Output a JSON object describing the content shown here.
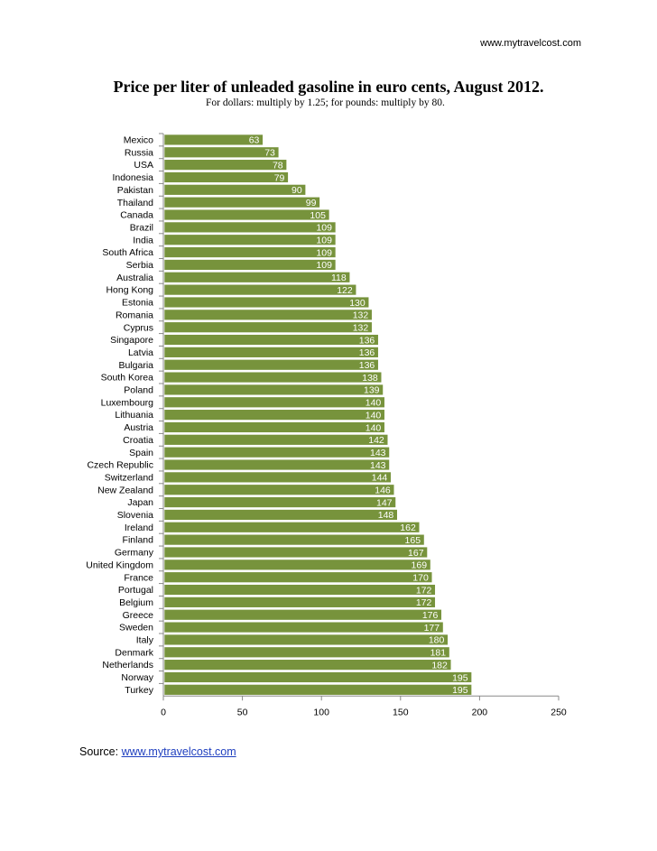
{
  "header": {
    "site_url": "www.mytravelcost.com"
  },
  "chart_data": {
    "type": "bar",
    "orientation": "horizontal",
    "title": "Price per liter of unleaded gasoline in euro cents, August 2012.",
    "subtitle": "For dollars: multiply by 1.25; for pounds: multiply by 80.",
    "categories": [
      "Mexico",
      "Russia",
      "USA",
      "Indonesia",
      "Pakistan",
      "Thailand",
      "Canada",
      "Brazil",
      "India",
      "South Africa",
      "Serbia",
      "Australia",
      "Hong Kong",
      "Estonia",
      "Romania",
      "Cyprus",
      "Singapore",
      "Latvia",
      "Bulgaria",
      "South Korea",
      "Poland",
      "Luxembourg",
      "Lithuania",
      "Austria",
      "Croatia",
      "Spain",
      "Czech Republic",
      "Switzerland",
      "New Zealand",
      "Japan",
      "Slovenia",
      "Ireland",
      "Finland",
      "Germany",
      "United Kingdom",
      "France",
      "Portugal",
      "Belgium",
      "Greece",
      "Sweden",
      "Italy",
      "Denmark",
      "Netherlands",
      "Norway",
      "Turkey"
    ],
    "values": [
      63,
      73,
      78,
      79,
      90,
      99,
      105,
      109,
      109,
      109,
      109,
      118,
      122,
      130,
      132,
      132,
      136,
      136,
      136,
      138,
      139,
      140,
      140,
      140,
      142,
      143,
      143,
      144,
      146,
      147,
      148,
      162,
      165,
      167,
      169,
      170,
      172,
      172,
      176,
      177,
      180,
      181,
      182,
      195,
      195
    ],
    "xlim": [
      0,
      250
    ],
    "xticks": [
      "0",
      "50",
      "100",
      "150",
      "200",
      "250"
    ],
    "bar_color": "#77933c",
    "label_color": "#ffffff",
    "grid": false,
    "legend": "none"
  },
  "footer": {
    "source_label": "Source: ",
    "source_link": "www.mytravelcost.com"
  }
}
